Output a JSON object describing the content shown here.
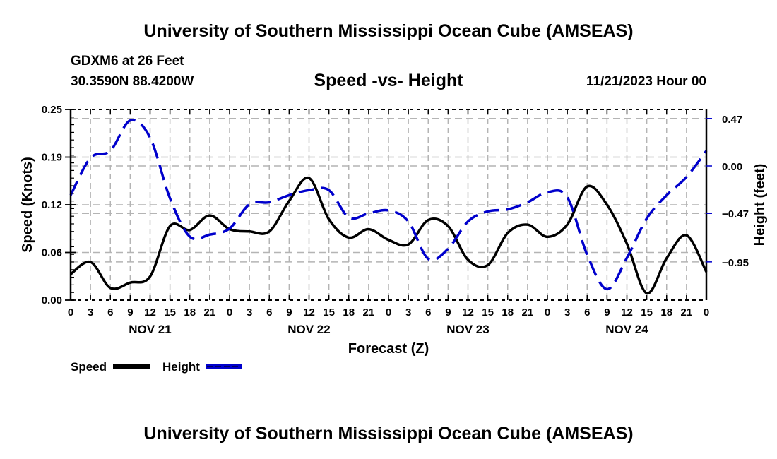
{
  "header": {
    "title": "University of Southern Mississippi Ocean Cube (AMSEAS)",
    "station": "GDXM6 at 26 Feet",
    "coords": "30.3590N  88.4200W",
    "subtitle": "Speed -vs- Height",
    "datetime": "11/21/2023 Hour 00"
  },
  "footer": {
    "title": "University of Southern Mississippi Ocean Cube (AMSEAS)"
  },
  "chart_data": {
    "type": "line",
    "title": "Speed -vs- Height",
    "xlabel": "Forecast (Z)",
    "ylabel": "Speed (Knots)",
    "y2label": "Height (feet)",
    "grid": true,
    "legend_position": "bottom-left",
    "x_hours": [
      0,
      3,
      6,
      9,
      12,
      15,
      18,
      21,
      24,
      27,
      30,
      33,
      36,
      39,
      42,
      45,
      48,
      51,
      54,
      57,
      60,
      63,
      66,
      69,
      72,
      75,
      78,
      81,
      84,
      87,
      90,
      93,
      96
    ],
    "x_tick_labels": [
      "0",
      "3",
      "6",
      "9",
      "12",
      "15",
      "18",
      "21",
      "0",
      "3",
      "6",
      "9",
      "12",
      "15",
      "18",
      "21",
      "0",
      "3",
      "6",
      "9",
      "12",
      "15",
      "18",
      "21",
      "0",
      "3",
      "6",
      "9",
      "12",
      "15",
      "18",
      "21",
      "0"
    ],
    "date_labels": [
      {
        "label": "NOV 21",
        "center_hour": 12
      },
      {
        "label": "NOV 22",
        "center_hour": 36
      },
      {
        "label": "NOV 23",
        "center_hour": 60
      },
      {
        "label": "NOV 24",
        "center_hour": 84
      }
    ],
    "xlim": [
      0,
      96
    ],
    "ylim": [
      0,
      0.25
    ],
    "y_ticks": [
      "0.00",
      "0.06",
      "0.12",
      "0.19",
      "0.25"
    ],
    "y_tick_values": [
      0,
      0.0625,
      0.125,
      0.1875,
      0.25
    ],
    "y2lim": [
      -1.32,
      0.58
    ],
    "y2_ticks": [
      "0.47",
      "0.00",
      "-0.47",
      "-0.95"
    ],
    "y2_tick_values": [
      0.47,
      0.0,
      -0.47,
      -0.95
    ],
    "series": [
      {
        "name": "Speed",
        "axis": "left",
        "color": "#000000",
        "dash": "solid",
        "values": [
          0.034,
          0.05,
          0.016,
          0.023,
          0.031,
          0.097,
          0.092,
          0.111,
          0.093,
          0.09,
          0.09,
          0.13,
          0.16,
          0.106,
          0.082,
          0.093,
          0.079,
          0.073,
          0.105,
          0.097,
          0.053,
          0.046,
          0.088,
          0.099,
          0.083,
          0.099,
          0.149,
          0.125,
          0.074,
          0.009,
          0.055,
          0.085,
          0.037
        ]
      },
      {
        "name": "Height",
        "axis": "right",
        "color": "#0000cc",
        "dash": "dashed",
        "values": [
          -0.29,
          0.08,
          0.15,
          0.45,
          0.28,
          -0.32,
          -0.7,
          -0.68,
          -0.62,
          -0.38,
          -0.36,
          -0.29,
          -0.24,
          -0.24,
          -0.51,
          -0.47,
          -0.44,
          -0.55,
          -0.92,
          -0.82,
          -0.55,
          -0.45,
          -0.43,
          -0.36,
          -0.26,
          -0.31,
          -0.88,
          -1.22,
          -0.91,
          -0.52,
          -0.29,
          -0.11,
          0.15
        ]
      }
    ]
  }
}
